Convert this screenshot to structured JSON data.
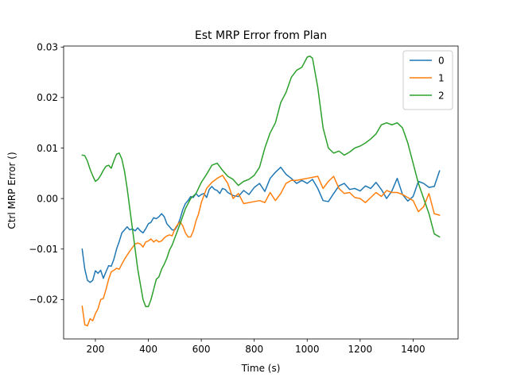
{
  "chart_data": {
    "type": "line",
    "title": "Est MRP Error from Plan",
    "xlabel": "Time (s)",
    "ylabel": "Ctrl MRP Error ()",
    "xlim": [
      80,
      1570
    ],
    "ylim": [
      -0.0278,
      0.0302
    ],
    "xticks": [
      200,
      400,
      600,
      800,
      1000,
      1200,
      1400
    ],
    "xtick_labels": [
      "200",
      "400",
      "600",
      "800",
      "1000",
      "1200",
      "1400"
    ],
    "yticks": [
      -0.02,
      -0.01,
      0.0,
      0.01,
      0.02,
      0.03
    ],
    "ytick_labels": [
      "−0.02",
      "−0.01",
      "0.00",
      "0.01",
      "0.02",
      "0.03"
    ],
    "grid": false,
    "legend_position": "top-right",
    "series": [
      {
        "name": "0",
        "color": "#1f77b4",
        "x": [
          150,
          160,
          170,
          180,
          190,
          200,
          210,
          220,
          230,
          240,
          250,
          260,
          270,
          280,
          290,
          300,
          310,
          320,
          330,
          340,
          350,
          360,
          370,
          380,
          390,
          400,
          410,
          420,
          430,
          440,
          450,
          460,
          470,
          480,
          490,
          500,
          510,
          520,
          530,
          540,
          550,
          560,
          570,
          580,
          590,
          600,
          610,
          620,
          630,
          640,
          650,
          660,
          670,
          680,
          690,
          700,
          720,
          740,
          760,
          780,
          800,
          820,
          840,
          860,
          880,
          900,
          920,
          940,
          960,
          980,
          1000,
          1020,
          1040,
          1060,
          1080,
          1100,
          1120,
          1140,
          1160,
          1180,
          1200,
          1220,
          1240,
          1260,
          1280,
          1300,
          1320,
          1340,
          1360,
          1380,
          1400,
          1420,
          1440,
          1460,
          1480,
          1500
        ],
        "y": [
          -0.01,
          -0.014,
          -0.0162,
          -0.0166,
          -0.0162,
          -0.0143,
          -0.0148,
          -0.0142,
          -0.0158,
          -0.0145,
          -0.0133,
          -0.0134,
          -0.012,
          -0.01,
          -0.0085,
          -0.0068,
          -0.0062,
          -0.0056,
          -0.0062,
          -0.006,
          -0.0064,
          -0.0058,
          -0.0064,
          -0.0068,
          -0.006,
          -0.005,
          -0.0047,
          -0.0038,
          -0.004,
          -0.0036,
          -0.003,
          -0.0036,
          -0.005,
          -0.0056,
          -0.0062,
          -0.0062,
          -0.0054,
          -0.004,
          -0.0022,
          -0.001,
          -0.0004,
          0.0004,
          0.0002,
          0.001,
          0.0004,
          0.0008,
          0.001,
          0.0002,
          0.0018,
          0.0024,
          0.0018,
          0.0016,
          0.001,
          0.002,
          0.0018,
          0.0012,
          0.0006,
          0.0004,
          0.0016,
          0.0008,
          0.0022,
          0.003,
          0.0014,
          0.004,
          0.0052,
          0.0062,
          0.0048,
          0.004,
          0.003,
          0.0036,
          0.003,
          0.0038,
          0.002,
          -0.0004,
          -0.0006,
          0.001,
          0.0025,
          0.003,
          0.0018,
          0.002,
          0.0015,
          0.0025,
          0.002,
          0.0032,
          0.0018,
          0.0,
          0.0015,
          0.004,
          0.0008,
          -0.0005,
          0.0004,
          0.0034,
          0.003,
          0.0022,
          0.0024,
          0.0055
        ]
      },
      {
        "name": "1",
        "color": "#ff7f0e",
        "x": [
          150,
          160,
          170,
          180,
          190,
          200,
          210,
          220,
          230,
          240,
          250,
          260,
          270,
          280,
          290,
          300,
          310,
          320,
          330,
          340,
          350,
          360,
          370,
          380,
          390,
          400,
          410,
          420,
          430,
          440,
          450,
          460,
          470,
          480,
          490,
          500,
          510,
          520,
          530,
          540,
          550,
          560,
          570,
          580,
          590,
          600,
          620,
          640,
          660,
          680,
          700,
          720,
          740,
          760,
          780,
          800,
          820,
          840,
          860,
          880,
          900,
          920,
          940,
          960,
          980,
          1000,
          1020,
          1040,
          1060,
          1080,
          1100,
          1120,
          1140,
          1160,
          1180,
          1200,
          1220,
          1240,
          1260,
          1280,
          1300,
          1320,
          1340,
          1360,
          1380,
          1400,
          1420,
          1440,
          1460,
          1480,
          1500
        ],
        "y": [
          -0.0213,
          -0.025,
          -0.0252,
          -0.0238,
          -0.0242,
          -0.0228,
          -0.0218,
          -0.02,
          -0.0198,
          -0.018,
          -0.016,
          -0.0145,
          -0.0142,
          -0.0138,
          -0.014,
          -0.013,
          -0.012,
          -0.0112,
          -0.0104,
          -0.0097,
          -0.009,
          -0.0088,
          -0.009,
          -0.0096,
          -0.0086,
          -0.0084,
          -0.008,
          -0.0086,
          -0.0082,
          -0.0086,
          -0.0084,
          -0.0078,
          -0.0074,
          -0.0072,
          -0.0074,
          -0.006,
          -0.0052,
          -0.0046,
          -0.0054,
          -0.0068,
          -0.0076,
          -0.0076,
          -0.0064,
          -0.0044,
          -0.003,
          -0.0008,
          0.002,
          0.0032,
          0.004,
          0.0046,
          0.003,
          0.0,
          0.001,
          -0.001,
          -0.0008,
          -0.0006,
          -0.0004,
          -0.0008,
          0.0012,
          -0.0004,
          0.001,
          0.003,
          0.0036,
          0.0036,
          0.0038,
          0.004,
          0.0042,
          0.0044,
          0.002,
          0.0034,
          0.0044,
          0.002,
          0.001,
          0.0012,
          0.0002,
          0.0,
          -0.0008,
          0.0002,
          0.0012,
          0.0004,
          0.0016,
          0.0012,
          0.0012,
          0.0008,
          0.0002,
          -0.0004,
          -0.0026,
          -0.0016,
          0.001,
          -0.003,
          -0.0033
        ]
      },
      {
        "name": "2",
        "color": "#2ca02c",
        "x": [
          150,
          160,
          170,
          180,
          190,
          200,
          210,
          220,
          230,
          240,
          250,
          260,
          270,
          280,
          290,
          300,
          310,
          320,
          330,
          340,
          350,
          360,
          370,
          380,
          390,
          400,
          410,
          420,
          430,
          440,
          450,
          460,
          470,
          480,
          490,
          500,
          520,
          540,
          560,
          580,
          600,
          620,
          640,
          660,
          680,
          700,
          720,
          740,
          760,
          780,
          800,
          820,
          840,
          860,
          880,
          900,
          920,
          940,
          960,
          980,
          1000,
          1010,
          1020,
          1040,
          1060,
          1080,
          1100,
          1120,
          1140,
          1160,
          1180,
          1200,
          1220,
          1240,
          1260,
          1280,
          1300,
          1320,
          1340,
          1360,
          1380,
          1400,
          1420,
          1440,
          1460,
          1480,
          1500
        ],
        "y": [
          0.0086,
          0.0085,
          0.0074,
          0.0058,
          0.0045,
          0.0034,
          0.0038,
          0.0046,
          0.0056,
          0.0064,
          0.0066,
          0.006,
          0.0075,
          0.0088,
          0.009,
          0.0078,
          0.0054,
          0.002,
          -0.002,
          -0.006,
          -0.01,
          -0.014,
          -0.017,
          -0.02,
          -0.0214,
          -0.0214,
          -0.02,
          -0.018,
          -0.016,
          -0.0155,
          -0.014,
          -0.013,
          -0.0118,
          -0.0102,
          -0.0092,
          -0.0078,
          -0.005,
          -0.002,
          0.0,
          0.001,
          0.0032,
          0.0048,
          0.0066,
          0.007,
          0.0056,
          0.0044,
          0.0038,
          0.0026,
          0.0034,
          0.0038,
          0.0046,
          0.0062,
          0.01,
          0.013,
          0.015,
          0.019,
          0.021,
          0.024,
          0.0254,
          0.026,
          0.028,
          0.0282,
          0.0278,
          0.022,
          0.014,
          0.01,
          0.009,
          0.0094,
          0.0086,
          0.0092,
          0.01,
          0.0104,
          0.011,
          0.0118,
          0.0128,
          0.0146,
          0.015,
          0.0146,
          0.015,
          0.014,
          0.011,
          0.007,
          0.003,
          0.0,
          -0.003,
          -0.007,
          -0.0076
        ]
      }
    ]
  }
}
